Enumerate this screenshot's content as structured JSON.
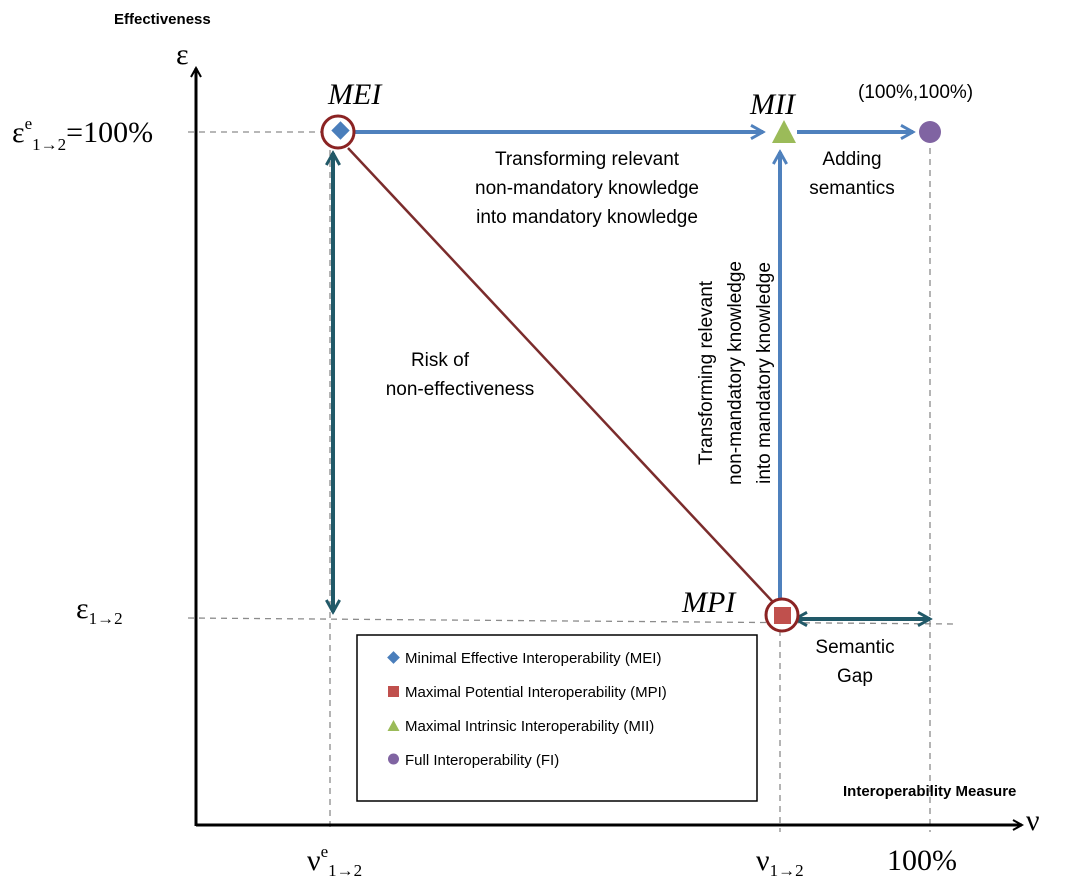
{
  "axes": {
    "y_title": "Effectiveness",
    "x_title": "Interoperability Measure",
    "y_symbol": "ε",
    "x_symbol": "ν"
  },
  "ticks": {
    "y_top_main": "ε",
    "y_top_sup": "e",
    "y_top_sub": "1→2",
    "y_top_value": "=100%",
    "y_bottom_main": "ε",
    "y_bottom_sub": "1→2",
    "x_left_main": "ν",
    "x_left_sup": "e",
    "x_left_sub": "1→2",
    "x_mid_main": "ν",
    "x_mid_sub": "1→2",
    "x_right": "100%"
  },
  "points": {
    "mei": "MEI",
    "mii": "MII",
    "mpi": "MPI",
    "fi_coord": "(100%,100%)"
  },
  "annotations": {
    "top_arrow": [
      "Transforming relevant",
      "non-mandatory knowledge",
      "into mandatory knowledge"
    ],
    "adding": [
      "Adding",
      "semantics"
    ],
    "risk": [
      "Risk of",
      "non-effectiveness"
    ],
    "vertical": [
      "Transforming relevant",
      "non-mandatory knowledge",
      "into mandatory knowledge"
    ],
    "gap": [
      "Semantic",
      "Gap"
    ]
  },
  "legend": [
    {
      "label": "Minimal Effective Interoperability (MEI)",
      "marker": "diamond",
      "color": "#4a7ebb"
    },
    {
      "label": "Maximal Potential Interoperability (MPI)",
      "marker": "square",
      "color": "#c0504d"
    },
    {
      "label": "Maximal Intrinsic Interoperability (MII)",
      "marker": "triangle",
      "color": "#9bbb59"
    },
    {
      "label": "Full Interoperability (FI)",
      "marker": "circle",
      "color": "#8064a2"
    }
  ],
  "colors": {
    "blue_arrow": "#4f81bd",
    "teal_arrow": "#215968",
    "diagonal": "#7b2c2c",
    "ring": "#8b2323",
    "mei": "#4a7ebb",
    "mpi": "#c0504d",
    "mii": "#9bbb59",
    "fi": "#8064a2"
  }
}
